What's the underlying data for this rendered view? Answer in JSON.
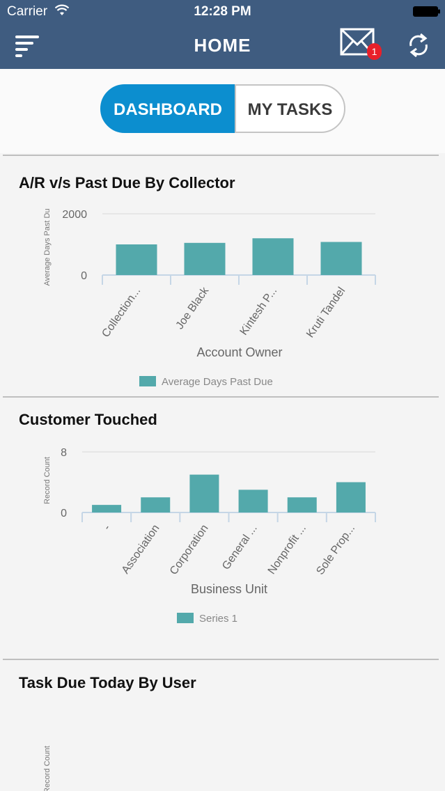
{
  "status_bar": {
    "carrier": "Carrier",
    "time": "12:28 PM"
  },
  "header": {
    "title": "HOME",
    "notification_count": "1"
  },
  "tabs": [
    {
      "label": "DASHBOARD",
      "selected": true
    },
    {
      "label": "MY TASKS",
      "selected": false
    }
  ],
  "colors": {
    "header": "#3f5c80",
    "accent": "#0c8ecf",
    "bar": "#53a9ab",
    "badge": "#e8202a"
  },
  "sections": [
    {
      "title": "A/R v/s Past Due By Collector"
    },
    {
      "title": "Customer Touched"
    },
    {
      "title": "Task Due Today By User"
    }
  ],
  "chart_data": [
    {
      "type": "bar",
      "title": "A/R v/s Past Due By Collector",
      "categories": [
        "Collection...",
        "Joe Black",
        "Kintesh P...",
        "Kruti Tandel"
      ],
      "series": [
        {
          "name": "Average Days Past Due",
          "values": [
            1000,
            1050,
            1200,
            1080
          ]
        }
      ],
      "xlabel": "Account Owner",
      "ylabel": "Average Days Past Du",
      "yticks": [
        "2000",
        "0"
      ],
      "ylim": [
        0,
        2000
      ],
      "grid": true,
      "legend": "bottom"
    },
    {
      "type": "bar",
      "title": "Customer Touched",
      "categories": [
        "-",
        "Association",
        "Corporation",
        "General ...",
        "Nonprofit ...",
        "Sole Prop..."
      ],
      "series": [
        {
          "name": "Series 1",
          "values": [
            1,
            2,
            5,
            3,
            2,
            4
          ]
        }
      ],
      "xlabel": "Business Unit",
      "ylabel": "Record Count",
      "yticks": [
        "8",
        "0"
      ],
      "ylim": [
        0,
        8
      ],
      "grid": true,
      "legend": "bottom"
    },
    {
      "type": "bar",
      "title": "Task Due Today By User",
      "categories": [],
      "series": [],
      "ylabel": "Record Count"
    }
  ]
}
